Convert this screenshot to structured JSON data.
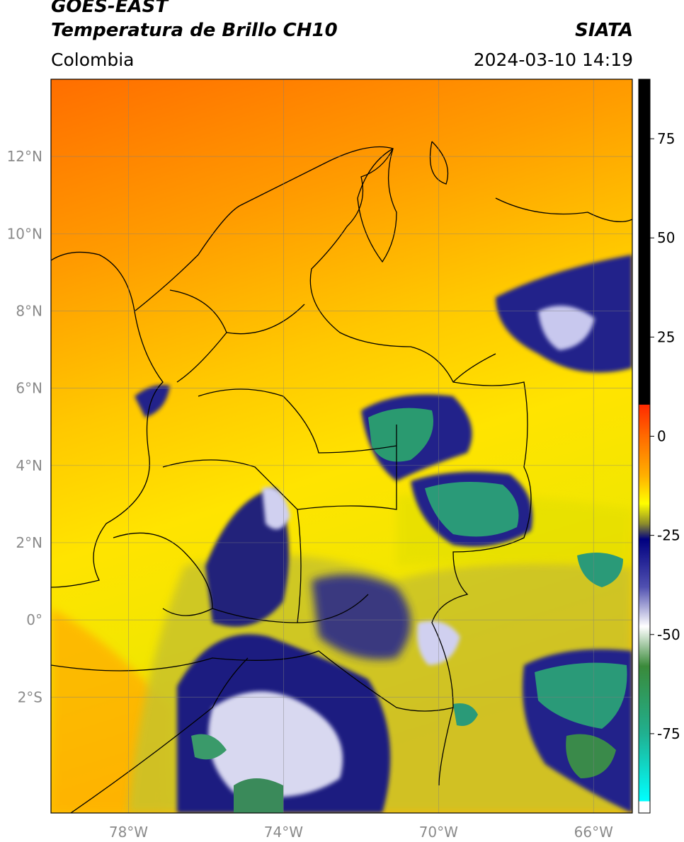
{
  "header": {
    "title_line1": "GOES-EAST",
    "title_line2": "Temperatura de Brillo CH10",
    "brand": "SIATA",
    "region": "Colombia",
    "datetime": "2024-03-10 14:19"
  },
  "map": {
    "lon_range": [
      -80,
      -65
    ],
    "lat_range": [
      -5,
      14
    ],
    "lat_ticks": [
      {
        "value": 12,
        "label": "12°N"
      },
      {
        "value": 10,
        "label": "10°N"
      },
      {
        "value": 8,
        "label": "8°N"
      },
      {
        "value": 6,
        "label": "6°N"
      },
      {
        "value": 4,
        "label": "4°N"
      },
      {
        "value": 2,
        "label": "2°N"
      },
      {
        "value": 0,
        "label": "0°"
      },
      {
        "value": -2,
        "label": "2°S"
      }
    ],
    "lon_ticks": [
      {
        "value": -78,
        "label": "78°W"
      },
      {
        "value": -74,
        "label": "74°W"
      },
      {
        "value": -70,
        "label": "70°W"
      },
      {
        "value": -66,
        "label": "66°W"
      }
    ],
    "grid": true
  },
  "colorbar": {
    "range": [
      -95,
      90
    ],
    "ticks": [
      {
        "value": 75,
        "label": "75"
      },
      {
        "value": 50,
        "label": "50"
      },
      {
        "value": 25,
        "label": "25"
      },
      {
        "value": 0,
        "label": "0"
      },
      {
        "value": -25,
        "label": "-25"
      },
      {
        "value": -50,
        "label": "-50"
      },
      {
        "value": -75,
        "label": "-75"
      }
    ],
    "stops": [
      {
        "value": 90,
        "color": "#000000"
      },
      {
        "value": 8,
        "color": "#000000"
      },
      {
        "value": 7.9,
        "color": "#ff2a00"
      },
      {
        "value": 0,
        "color": "#ff6a00"
      },
      {
        "value": -10,
        "color": "#ffb000"
      },
      {
        "value": -17,
        "color": "#ffff00"
      },
      {
        "value": -22,
        "color": "#8e8e2a"
      },
      {
        "value": -26,
        "color": "#000080"
      },
      {
        "value": -38,
        "color": "#5050b0"
      },
      {
        "value": -48,
        "color": "#ffffff"
      },
      {
        "value": -58,
        "color": "#3a8a3a"
      },
      {
        "value": -75,
        "color": "#20b090"
      },
      {
        "value": -92,
        "color": "#00ffff"
      },
      {
        "value": -92.1,
        "color": "#ffffff"
      },
      {
        "value": -95,
        "color": "#ffffff"
      }
    ]
  }
}
